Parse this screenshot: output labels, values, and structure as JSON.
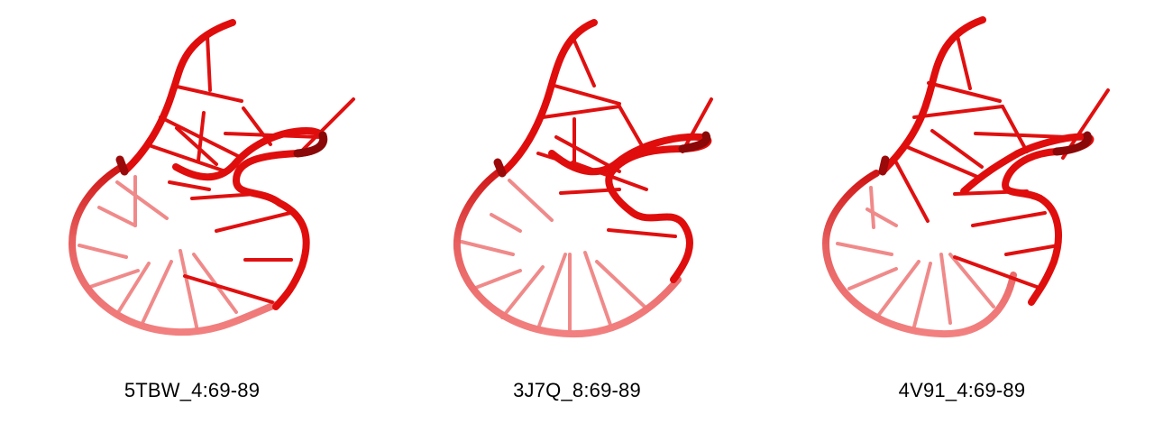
{
  "colors": {
    "backbone_front": "#e00d0d",
    "backbone_dark": "#9a0a0a",
    "backbone_back": "#f07a7a",
    "rung_front": "#e01010",
    "rung_back": "#f28c8c",
    "background": "#ffffff"
  },
  "panels": [
    {
      "label": "5TBW_4:69-89"
    },
    {
      "label": "3J7Q_8:69-89"
    },
    {
      "label": "4V91_4:69-89"
    }
  ]
}
